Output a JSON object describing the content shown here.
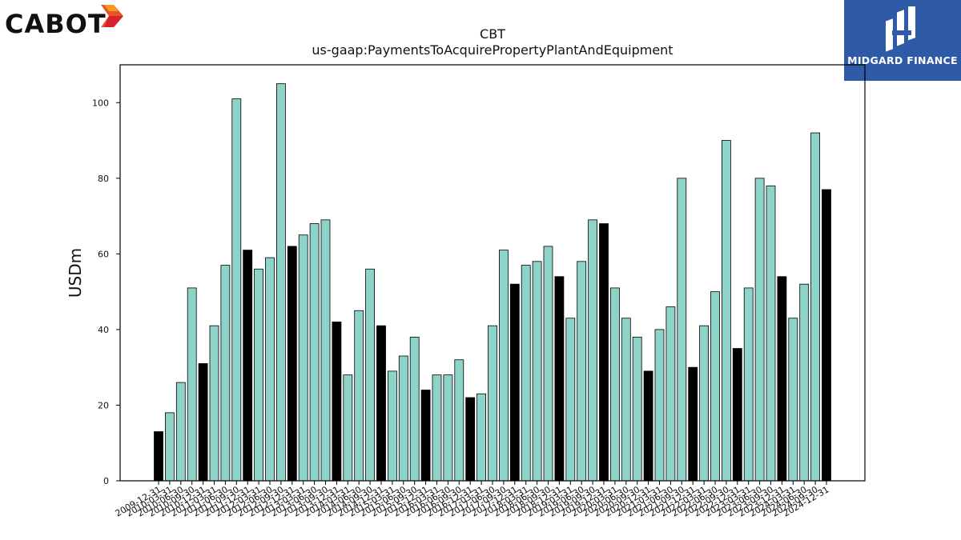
{
  "logos": {
    "left": {
      "text": "CABOT",
      "icon": "cabot-arrow-icon"
    },
    "right": {
      "text": "MIDGARD FINANCE",
      "icon": "midgard-mark-icon",
      "bg_color": "#2f5aa8"
    }
  },
  "colors": {
    "normal_bar": "#8dd3c7",
    "highlight_bar": "#000000",
    "bar_edge": "#000000"
  },
  "chart_data": {
    "type": "bar",
    "title": "CBT",
    "subtitle": "us-gaap:PaymentsToAcquirePropertyPlantAndEquipment",
    "xlabel": "",
    "ylabel": "USDm",
    "ylim": [
      0,
      110
    ],
    "yticks": [
      0,
      20,
      40,
      60,
      80,
      100
    ],
    "grid": false,
    "categories": [
      "2009-12-31",
      "2010-03-31",
      "2010-06-30",
      "2010-09-30",
      "2010-12-31",
      "2011-03-31",
      "2011-06-30",
      "2011-09-30",
      "2011-12-31",
      "2012-03-31",
      "2012-06-30",
      "2012-09-30",
      "2012-12-31",
      "2013-03-31",
      "2013-06-30",
      "2013-09-30",
      "2013-12-31",
      "2014-03-31",
      "2014-06-30",
      "2014-09-30",
      "2014-12-31",
      "2015-03-31",
      "2015-06-30",
      "2015-09-30",
      "2015-12-31",
      "2016-03-31",
      "2016-06-30",
      "2016-09-30",
      "2016-12-31",
      "2017-03-31",
      "2017-06-30",
      "2017-09-30",
      "2017-12-31",
      "2018-03-31",
      "2018-06-30",
      "2018-09-30",
      "2018-12-31",
      "2019-03-31",
      "2019-06-30",
      "2019-09-30",
      "2019-12-31",
      "2020-03-31",
      "2020-06-30",
      "2020-09-30",
      "2020-12-31",
      "2021-03-31",
      "2021-06-30",
      "2021-09-30",
      "2021-12-31",
      "2022-03-31",
      "2022-06-30",
      "2022-09-30",
      "2022-12-31",
      "2023-03-31",
      "2023-06-30",
      "2023-09-30",
      "2023-12-31",
      "2024-03-31",
      "2024-06-30",
      "2024-09-30",
      "2024-12-31"
    ],
    "values": [
      13,
      18,
      26,
      51,
      31,
      41,
      57,
      101,
      61,
      56,
      59,
      105,
      62,
      65,
      68,
      69,
      42,
      28,
      45,
      56,
      41,
      29,
      33,
      38,
      24,
      28,
      28,
      32,
      22,
      23,
      41,
      61,
      52,
      57,
      58,
      62,
      54,
      43,
      58,
      69,
      68,
      51,
      43,
      38,
      29,
      40,
      46,
      80,
      30,
      41,
      50,
      90,
      35,
      51,
      80,
      78,
      54,
      43,
      52,
      92,
      77
    ],
    "highlighted": [
      true,
      false,
      false,
      false,
      true,
      false,
      false,
      false,
      true,
      false,
      false,
      false,
      true,
      false,
      false,
      false,
      true,
      false,
      false,
      false,
      true,
      false,
      false,
      false,
      true,
      false,
      false,
      false,
      true,
      false,
      false,
      false,
      true,
      false,
      false,
      false,
      true,
      false,
      false,
      false,
      true,
      false,
      false,
      false,
      true,
      false,
      false,
      false,
      true,
      false,
      false,
      false,
      true,
      false,
      false,
      false,
      true,
      false,
      false,
      false,
      true
    ]
  }
}
